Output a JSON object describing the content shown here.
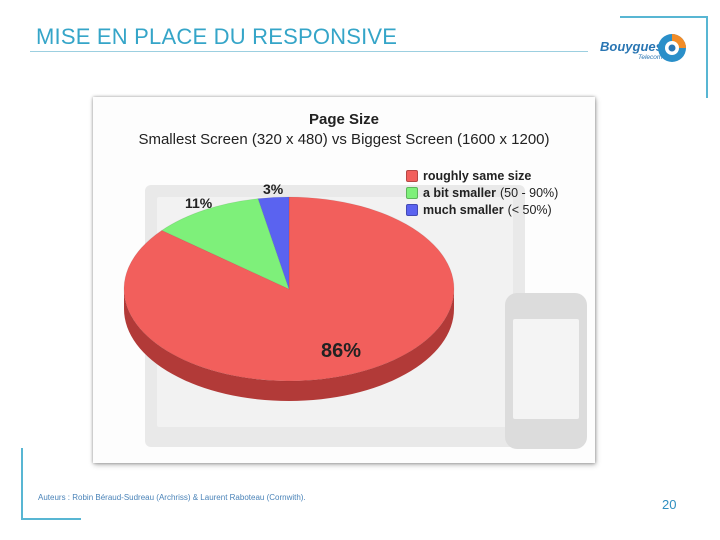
{
  "slide": {
    "title": "MISE EN PLACE DU RESPONSIVE",
    "logo": {
      "brand": "Bouygues",
      "sub": "Telecom"
    },
    "authors": "Auteurs : Robin Béraud-Sudreau (Archriss) & Laurent Raboteau (Cornwith).",
    "page_number": "20",
    "accent_color": "#35a5c8"
  },
  "chart_data": {
    "type": "pie",
    "title": "Page Size",
    "subtitle": "Smallest Screen (320 x 480) vs Biggest Screen (1600 x 1200)",
    "legend_position": "top-right",
    "labels": [
      {
        "main": "roughly same size",
        "range": ""
      },
      {
        "main": "a bit smaller",
        "range": "(50 - 90%)"
      },
      {
        "main": "much smaller",
        "range": "(< 50%)"
      }
    ],
    "values": [
      86,
      11,
      3
    ],
    "value_labels": [
      "86%",
      "11%",
      "3%"
    ],
    "colors": [
      "#f25f5c",
      "#7ef07a",
      "#5a63f0"
    ],
    "side_colors": [
      "#b23a38",
      "#4fb44c",
      "#3a3fb0"
    ]
  }
}
